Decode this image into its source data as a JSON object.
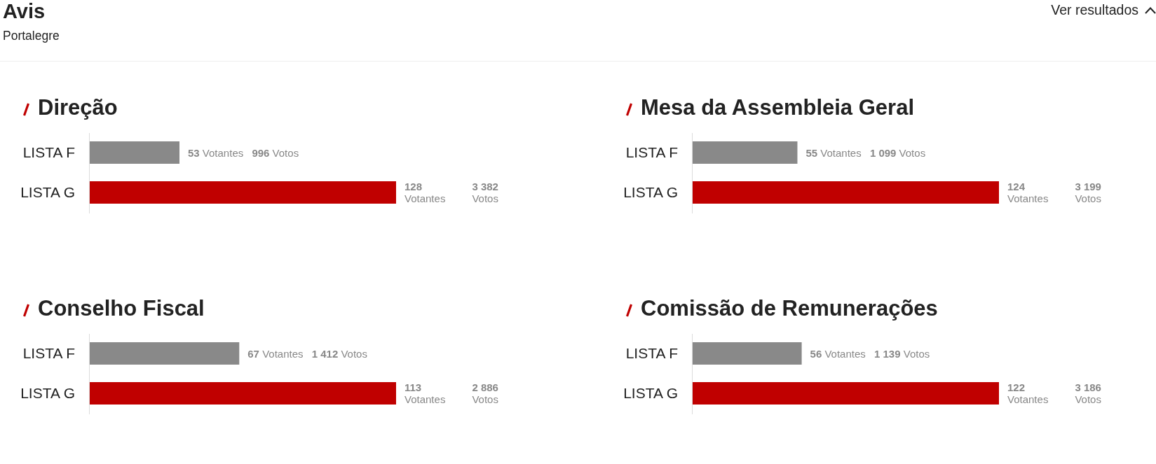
{
  "chart_data": [
    {
      "type": "other",
      "title": "Avis",
      "subtitle": "Portalegre",
      "annotations": [
        "Ver resultados"
      ]
    },
    {
      "type": "bar",
      "orientation": "horizontal",
      "title": "Direção",
      "categories": [
        "LISTA F",
        "LISTA G"
      ],
      "values": [
        996,
        3382
      ],
      "colors": [
        "#898989",
        "#c00000"
      ],
      "value_labels": [
        "53 Votantes 996 Votos",
        "128 Votantes 3 382 Votos"
      ]
    },
    {
      "type": "bar",
      "orientation": "horizontal",
      "title": "Mesa da Assembleia Geral",
      "categories": [
        "LISTA F",
        "LISTA G"
      ],
      "values": [
        1099,
        3199
      ],
      "colors": [
        "#898989",
        "#c00000"
      ],
      "value_labels": [
        "55 Votantes 1 099 Votos",
        "124 Votantes 3 199 Votos"
      ]
    },
    {
      "type": "bar",
      "orientation": "horizontal",
      "title": "Conselho Fiscal",
      "categories": [
        "LISTA F",
        "LISTA G"
      ],
      "values": [
        1412,
        2886
      ],
      "colors": [
        "#898989",
        "#c00000"
      ],
      "value_labels": [
        "67 Votantes 1 412 Votos",
        "113 Votantes 2 886 Votos"
      ]
    },
    {
      "type": "bar",
      "orientation": "horizontal",
      "title": "Comissão de Remunerações",
      "categories": [
        "LISTA F",
        "LISTA G"
      ],
      "values": [
        1139,
        3186
      ],
      "colors": [
        "#898989",
        "#c00000"
      ],
      "value_labels": [
        "56 Votantes 1 139 Votos",
        "122 Votantes 3 186 Votos"
      ]
    }
  ]
}
